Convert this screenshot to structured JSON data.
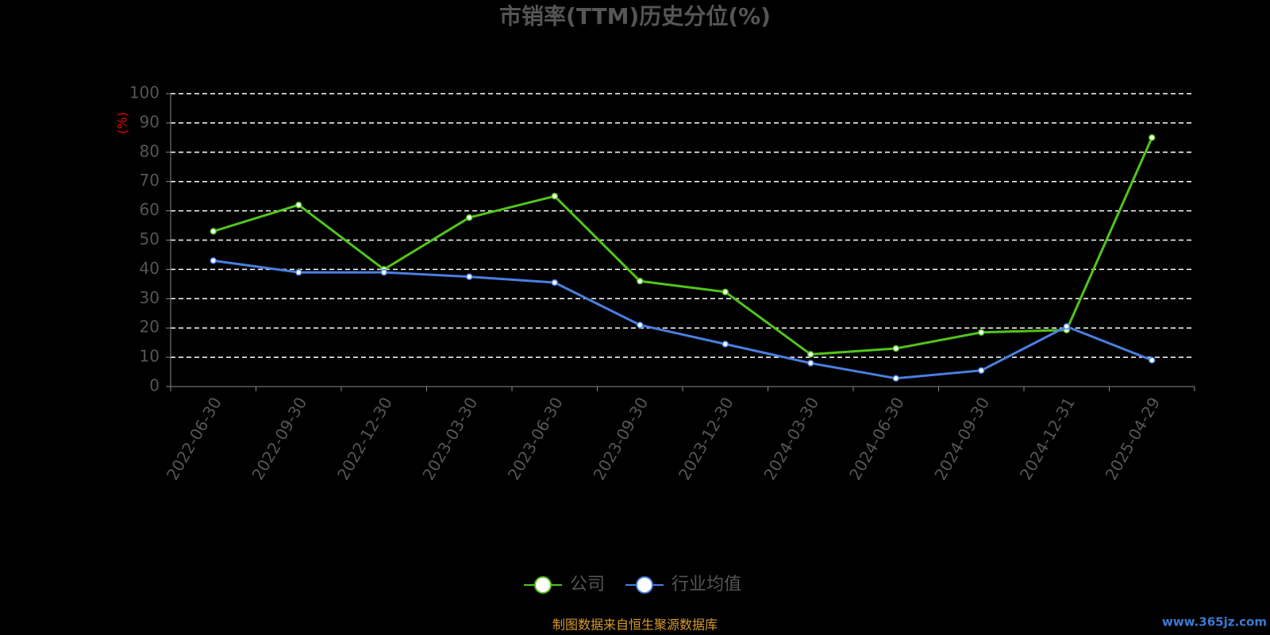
{
  "chart_data": {
    "type": "line",
    "title": "市销率(TTM)历史分位(%)",
    "y_label": "(%)",
    "categories": [
      "2022-06-30",
      "2022-09-30",
      "2022-12-30",
      "2023-03-30",
      "2023-06-30",
      "2023-09-30",
      "2023-12-30",
      "2024-03-30",
      "2024-06-30",
      "2024-09-30",
      "2024-12-31",
      "2025-04-29"
    ],
    "series": [
      {
        "name": "公司",
        "color": "#52c41a",
        "values": [
          53,
          62,
          40,
          57.7,
          65,
          36,
          32.3,
          11,
          13,
          18.5,
          19.3,
          85
        ]
      },
      {
        "name": "行业均值",
        "color": "#4a7fe0",
        "values": [
          43,
          39,
          39,
          37.5,
          35.5,
          21,
          14.5,
          8,
          2.8,
          5.5,
          20.5,
          9
        ]
      }
    ],
    "ylim": [
      0,
      100
    ],
    "yticks": [
      0,
      10,
      20,
      30,
      40,
      50,
      60,
      70,
      80,
      90,
      100
    ],
    "grid": true,
    "source": "制图数据来自恒生聚源数据库",
    "watermark": "www.365jz.com"
  }
}
